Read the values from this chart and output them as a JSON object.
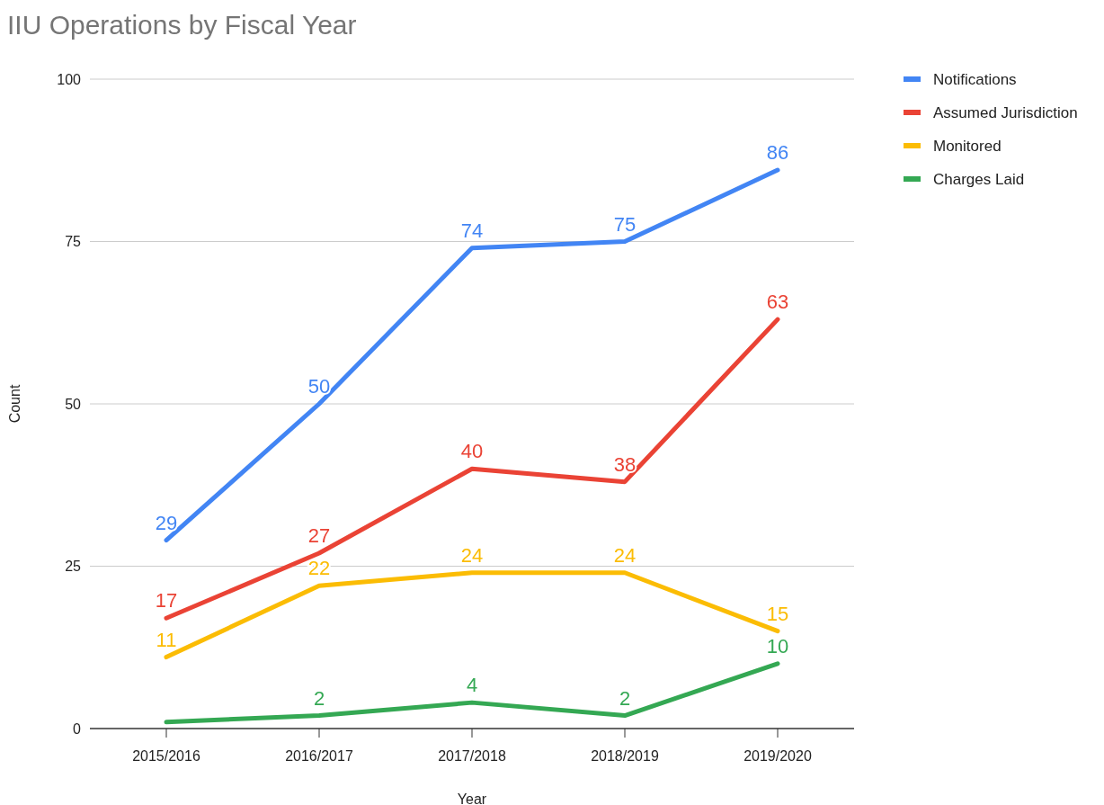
{
  "chart_data": {
    "type": "line",
    "title": "IIU Operations by Fiscal Year",
    "xlabel": "Year",
    "ylabel": "Count",
    "categories": [
      "2015/2016",
      "2016/2017",
      "2017/2018",
      "2018/2019",
      "2019/2020"
    ],
    "series": [
      {
        "name": "Notifications",
        "color": "#4285f4",
        "values": [
          29,
          50,
          74,
          75,
          86
        ],
        "value_labels": [
          "29",
          "50",
          "74",
          "75",
          "86"
        ]
      },
      {
        "name": "Assumed Jurisdiction",
        "color": "#ea4335",
        "values": [
          17,
          27,
          40,
          38,
          63
        ],
        "value_labels": [
          "17",
          "27",
          "40",
          "38",
          "63"
        ]
      },
      {
        "name": "Monitored",
        "color": "#fbbc04",
        "values": [
          11,
          22,
          24,
          24,
          15
        ],
        "value_labels": [
          "11",
          "22",
          "24",
          "24",
          "15"
        ]
      },
      {
        "name": "Charges Laid",
        "color": "#34a853",
        "values": [
          1,
          2,
          4,
          2,
          10
        ],
        "value_labels": [
          null,
          "2",
          "4",
          "2",
          "10"
        ]
      }
    ],
    "ylim": [
      0,
      100
    ],
    "yticks": [
      0,
      25,
      50,
      75,
      100
    ],
    "grid": "y",
    "legend": "right",
    "marker": "none",
    "line_style": "solid"
  }
}
